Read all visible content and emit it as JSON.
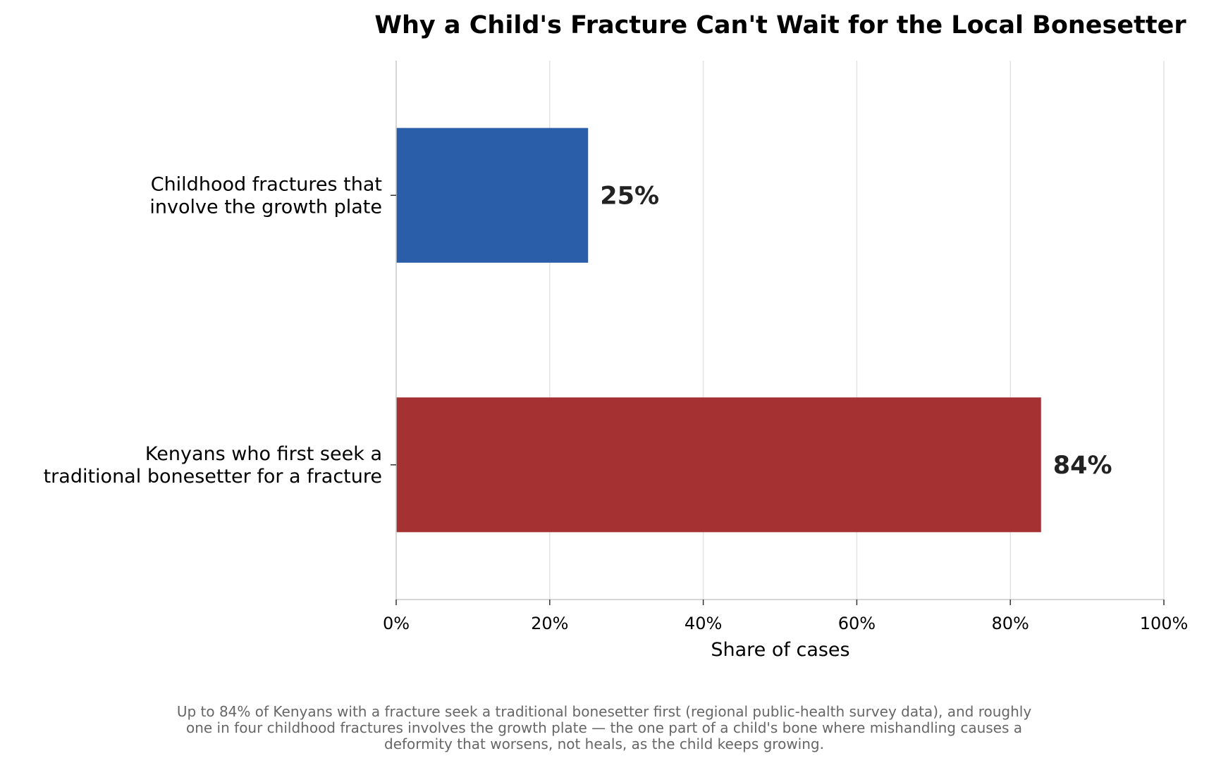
{
  "chart_data": {
    "type": "bar",
    "orientation": "horizontal",
    "title": "Why a Child's Fracture Can't Wait for the Local Bonesetter",
    "xlabel": "Share of cases",
    "ylabel": "",
    "xlim": [
      0,
      100
    ],
    "x_ticks": [
      0,
      20,
      40,
      60,
      80,
      100
    ],
    "x_tick_labels": [
      "0%",
      "20%",
      "40%",
      "60%",
      "80%",
      "100%"
    ],
    "grid": "vertical",
    "legend": "none",
    "categories": [
      [
        "Childhood fractures that",
        "involve the growth plate"
      ],
      [
        "Kenyans who first seek a",
        "traditional bonesetter for a fracture"
      ]
    ],
    "values": [
      25,
      84
    ],
    "value_labels": [
      "25%",
      "84%"
    ],
    "colors": [
      "#2a5ea8",
      "#a53133"
    ],
    "caption": [
      "Up to 84% of Kenyans with a fracture seek a traditional bonesetter first (regional public-health survey data), and roughly",
      "one in four childhood fractures involves the growth plate — the one part of a child's bone where mishandling causes a",
      "deformity that worsens, not heals, as the child keeps growing."
    ]
  }
}
